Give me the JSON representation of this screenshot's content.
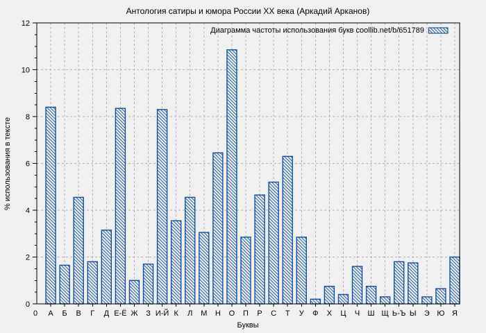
{
  "window": {
    "background_color": "#f0f0f0",
    "text_color": "#000000"
  },
  "chart_data": {
    "type": "bar",
    "title": "Антология сатиры и юмора России XX века (Аркадий Арканов)",
    "legend_label": "Диаграмма частоты использования букв coollib.net/b/651789",
    "legend_position": "top-right",
    "xlabel": "Буквы",
    "ylabel": "% использования в тексте",
    "origin_label": "0",
    "ylim": [
      0,
      12
    ],
    "ytick_step": 2,
    "ytick_minor_step": 0.5,
    "grid": true,
    "grid_style": "dashed",
    "grid_color": "#b0b0b0",
    "bar_color": "#1150a0",
    "bar_fill": "hatch-diagonal-down",
    "plot_background": "#f0f0f0",
    "categories": [
      "А",
      "Б",
      "В",
      "Г",
      "Д",
      "Е-Ё",
      "Ж",
      "З",
      "И-Й",
      "К",
      "Л",
      "М",
      "Н",
      "О",
      "П",
      "Р",
      "С",
      "Т",
      "У",
      "Ф",
      "Х",
      "Ц",
      "Ч",
      "Ш",
      "Щ",
      "Ь-Ъ",
      "Ы",
      "Э",
      "Ю",
      "Я"
    ],
    "values": [
      8.4,
      1.65,
      4.55,
      1.8,
      3.15,
      8.35,
      1.0,
      1.7,
      8.3,
      3.55,
      4.55,
      3.05,
      6.45,
      10.85,
      2.85,
      4.65,
      5.2,
      6.3,
      2.85,
      0.2,
      0.75,
      0.4,
      1.6,
      0.75,
      0.3,
      1.8,
      1.75,
      0.3,
      0.65,
      2.0
    ]
  }
}
